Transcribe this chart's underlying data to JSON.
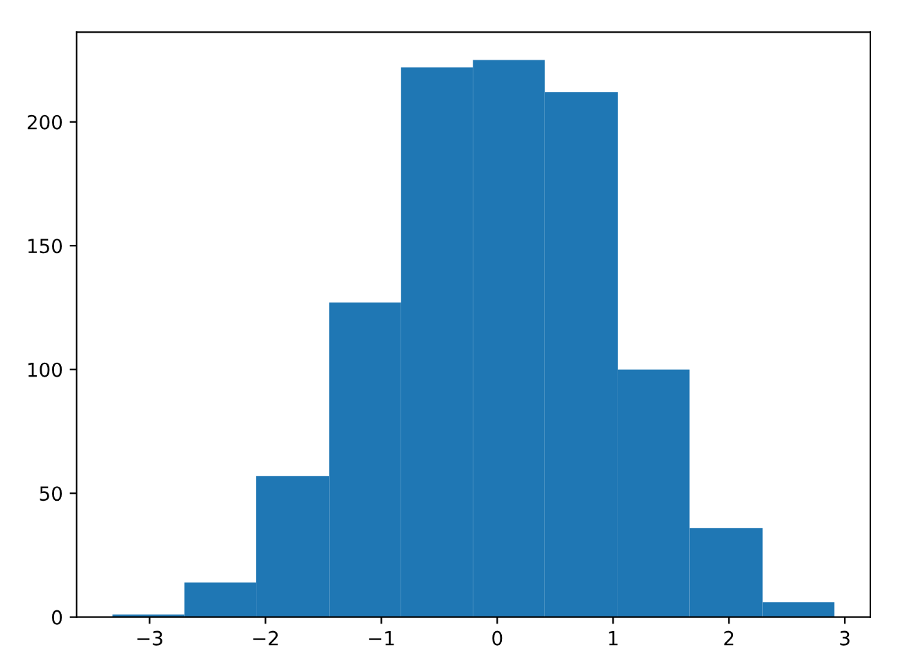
{
  "chart_data": {
    "type": "histogram",
    "bins": [
      -3.32,
      -2.7,
      -2.08,
      -1.45,
      -0.83,
      -0.21,
      0.41,
      1.04,
      1.66,
      2.29,
      2.91
    ],
    "values": [
      1,
      14,
      57,
      127,
      222,
      225,
      212,
      100,
      36,
      6
    ],
    "color": "#1f77b4",
    "xlim": [
      -3.63,
      3.22
    ],
    "ylim": [
      0,
      236.25
    ],
    "xticks": [
      {
        "value": -3,
        "label": "−3"
      },
      {
        "value": -2,
        "label": "−2"
      },
      {
        "value": -1,
        "label": "−1"
      },
      0,
      1,
      2,
      3
    ],
    "yticks": [
      0,
      50,
      100,
      150,
      200
    ],
    "grid": false
  }
}
